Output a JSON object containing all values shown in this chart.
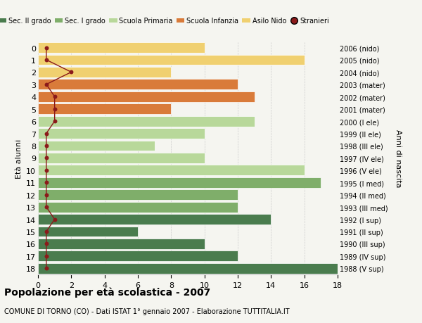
{
  "ages": [
    0,
    1,
    2,
    3,
    4,
    5,
    6,
    7,
    8,
    9,
    10,
    11,
    12,
    13,
    14,
    15,
    16,
    17,
    18
  ],
  "right_labels": [
    "2006 (nido)",
    "2005 (nido)",
    "2004 (nido)",
    "2003 (mater)",
    "2002 (mater)",
    "2001 (mater)",
    "2000 (I ele)",
    "1999 (II ele)",
    "1998 (III ele)",
    "1997 (IV ele)",
    "1996 (V ele)",
    "1995 (I med)",
    "1994 (II med)",
    "1993 (III med)",
    "1992 (I sup)",
    "1991 (II sup)",
    "1990 (III sup)",
    "1989 (IV sup)",
    "1988 (V sup)"
  ],
  "bar_values": [
    10,
    16,
    8,
    12,
    13,
    8,
    13,
    10,
    7,
    10,
    16,
    17,
    12,
    12,
    14,
    6,
    10,
    12,
    18
  ],
  "bar_colors": [
    "#f0d070",
    "#f0d070",
    "#f0d070",
    "#d97b3a",
    "#d97b3a",
    "#d97b3a",
    "#b8d89a",
    "#b8d89a",
    "#b8d89a",
    "#b8d89a",
    "#b8d89a",
    "#7fae6a",
    "#7fae6a",
    "#7fae6a",
    "#4a7c4e",
    "#4a7c4e",
    "#4a7c4e",
    "#4a7c4e",
    "#4a7c4e"
  ],
  "stranieri_x": [
    0.5,
    0.5,
    2.0,
    0.5,
    1.0,
    1.0,
    1.0,
    0.5,
    0.5,
    0.5,
    0.5,
    0.5,
    0.5,
    0.5,
    1.0,
    0.5,
    0.5,
    0.5,
    0.5
  ],
  "stranieri_color": "#8b1a1a",
  "legend_labels": [
    "Sec. II grado",
    "Sec. I grado",
    "Scuola Primaria",
    "Scuola Infanzia",
    "Asilo Nido",
    "Stranieri"
  ],
  "legend_colors": [
    "#4a7c4e",
    "#7fae6a",
    "#b8d89a",
    "#d97b3a",
    "#f0d070",
    "#8b1a1a"
  ],
  "ylabel_left": "Età alunni",
  "ylabel_right": "Anni di nascita",
  "title": "Popolazione per età scolastica - 2007",
  "subtitle": "COMUNE DI TORNO (CO) - Dati ISTAT 1° gennaio 2007 - Elaborazione TUTTITALIA.IT",
  "xlim": [
    0,
    18
  ],
  "background_color": "#f5f5f0",
  "grid_color": "#cccccc"
}
